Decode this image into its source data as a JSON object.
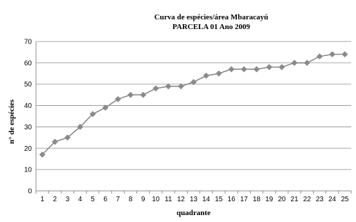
{
  "chart_data": {
    "type": "line",
    "title_line1": "Curva de espécies/área Mbaracayú",
    "title_line2": "PARCELA 01 Ano 2009",
    "xlabel": "quadrante",
    "ylabel": "n° de espécies",
    "categories": [
      1,
      2,
      3,
      4,
      5,
      6,
      7,
      8,
      9,
      10,
      11,
      12,
      13,
      14,
      15,
      16,
      17,
      18,
      19,
      20,
      21,
      22,
      23,
      24,
      25
    ],
    "series": [
      {
        "values": [
          17,
          23,
          25,
          30,
          36,
          39,
          43,
          45,
          45,
          48,
          49,
          49,
          51,
          54,
          55,
          57,
          57,
          57,
          58,
          58,
          60,
          60,
          63,
          64,
          64
        ]
      }
    ],
    "ylim": [
      0,
      70
    ],
    "yticks": [
      0,
      10,
      20,
      30,
      40,
      50,
      60,
      70
    ],
    "grid": true,
    "legend": "none",
    "marker": "diamond",
    "series_color": "#8a8a8a"
  }
}
